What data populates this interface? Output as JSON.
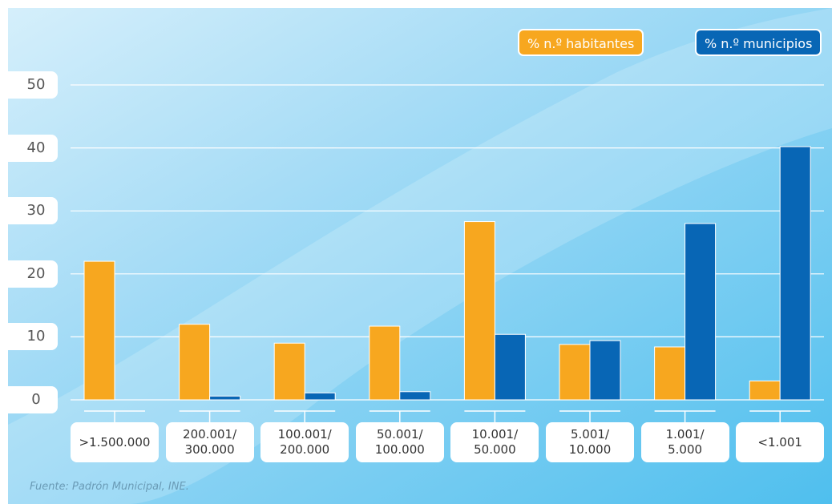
{
  "chart_data": {
    "type": "bar",
    "categories": [
      ">1.500.000",
      "200.001/\n300.000",
      "100.001/\n200.000",
      "50.001/\n100.000",
      "10.001/\n50.000",
      "5.001/\n10.000",
      "1.001/\n5.000",
      "<1.001"
    ],
    "series": [
      {
        "name": "% n.º habitantes",
        "values": [
          22,
          12,
          9,
          11.7,
          28.3,
          8.8,
          8.4,
          3
        ],
        "color": "#F7A71F"
      },
      {
        "name": "% n.º municipios",
        "values": [
          0,
          0.6,
          1.1,
          1.3,
          10.4,
          9.4,
          28,
          40.2
        ],
        "color": "#0866B5"
      }
    ],
    "yticks": [
      "0",
      "10",
      "20",
      "30",
      "40",
      "50"
    ],
    "ylim": [
      0,
      50
    ],
    "source": "Fuente: Padrón Municipal, INE.",
    "grid": true,
    "legend_position": "top-right"
  },
  "colors": {
    "background_light": "#c5e8fa",
    "background_dark": "#5cc4ee",
    "gridline": "#ffffff"
  }
}
